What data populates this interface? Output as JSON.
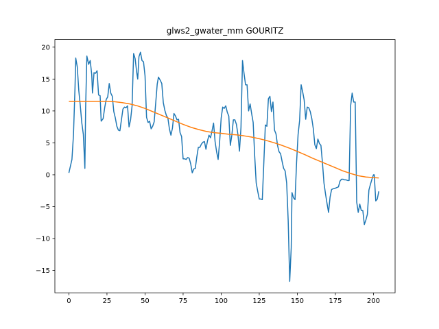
{
  "chart_data": {
    "type": "line",
    "title": "glws2_gwater_mm GOURITZ",
    "xlabel": "",
    "ylabel": "",
    "xlim": [
      -9.2,
      214.2
    ],
    "ylim": [
      -18.5,
      21.2
    ],
    "xticks": [
      0,
      25,
      50,
      75,
      100,
      125,
      150,
      175,
      200
    ],
    "yticks": [
      -15,
      -10,
      -5,
      0,
      5,
      10,
      15,
      20
    ],
    "grid": false,
    "legend": "none",
    "series": [
      {
        "color": "#1f77b4",
        "points": [
          [
            0,
            0.3
          ],
          [
            2,
            2.4
          ],
          [
            3,
            6.2
          ],
          [
            4,
            13.5
          ],
          [
            4.5,
            18.3
          ],
          [
            5.5,
            16.9
          ],
          [
            6.5,
            13.2
          ],
          [
            7.5,
            10.8
          ],
          [
            8.5,
            8.1
          ],
          [
            9.5,
            6.3
          ],
          [
            10.5,
            1.0
          ],
          [
            11,
            10.5
          ],
          [
            11.8,
            18.6
          ],
          [
            13,
            17.3
          ],
          [
            14,
            17.9
          ],
          [
            15,
            15.7
          ],
          [
            15.5,
            12.8
          ],
          [
            16.5,
            16.0
          ],
          [
            17.5,
            15.9
          ],
          [
            18.5,
            16.3
          ],
          [
            19.5,
            12.5
          ],
          [
            20.5,
            12.4
          ],
          [
            21.2,
            8.4
          ],
          [
            22.5,
            8.8
          ],
          [
            23.5,
            10.5
          ],
          [
            24.5,
            11.8
          ],
          [
            25.5,
            12.2
          ],
          [
            26.5,
            14.3
          ],
          [
            27.5,
            12.8
          ],
          [
            28.5,
            12.3
          ],
          [
            29.5,
            9.9
          ],
          [
            30.5,
            8.9
          ],
          [
            31.5,
            7.6
          ],
          [
            32.5,
            7.0
          ],
          [
            33.5,
            6.9
          ],
          [
            34.5,
            8.6
          ],
          [
            35.5,
            10.3
          ],
          [
            36.5,
            10.6
          ],
          [
            37.5,
            10.5
          ],
          [
            38.5,
            10.8
          ],
          [
            39.5,
            7.5
          ],
          [
            40.5,
            8.6
          ],
          [
            41.5,
            10.8
          ],
          [
            42.5,
            19.0
          ],
          [
            43.5,
            18.2
          ],
          [
            44.5,
            16.1
          ],
          [
            45.2,
            15.0
          ],
          [
            46,
            18.5
          ],
          [
            47,
            19.2
          ],
          [
            48,
            17.9
          ],
          [
            49,
            17.7
          ],
          [
            50,
            15.5
          ],
          [
            51,
            9.0
          ],
          [
            52,
            8.2
          ],
          [
            53,
            8.4
          ],
          [
            54,
            7.2
          ],
          [
            55,
            7.6
          ],
          [
            56,
            8.3
          ],
          [
            57,
            11.2
          ],
          [
            58,
            14.2
          ],
          [
            58.8,
            15.3
          ],
          [
            60,
            14.8
          ],
          [
            61,
            14.3
          ],
          [
            62,
            11.3
          ],
          [
            63,
            10.1
          ],
          [
            64,
            9.3
          ],
          [
            65,
            8.9
          ],
          [
            66,
            7.2
          ],
          [
            67,
            6.2
          ],
          [
            68,
            7.3
          ],
          [
            69,
            9.6
          ],
          [
            70,
            9.2
          ],
          [
            71,
            8.6
          ],
          [
            72,
            8.7
          ],
          [
            73,
            6.6
          ],
          [
            74,
            6.0
          ],
          [
            75,
            2.5
          ],
          [
            76,
            2.5
          ],
          [
            77,
            2.4
          ],
          [
            78,
            2.7
          ],
          [
            79,
            2.6
          ],
          [
            80,
            1.7
          ],
          [
            81,
            0.3
          ],
          [
            82,
            0.9
          ],
          [
            83,
            1.0
          ],
          [
            84,
            2.8
          ],
          [
            85,
            4.3
          ],
          [
            86,
            4.3
          ],
          [
            87,
            4.8
          ],
          [
            88,
            5.1
          ],
          [
            89,
            5.2
          ],
          [
            90,
            4.0
          ],
          [
            91,
            5.3
          ],
          [
            92,
            6.2
          ],
          [
            93,
            5.8
          ],
          [
            94,
            6.9
          ],
          [
            95,
            8.1
          ],
          [
            96,
            5.2
          ],
          [
            97,
            3.6
          ],
          [
            98,
            2.4
          ],
          [
            99,
            5.2
          ],
          [
            100,
            8.9
          ],
          [
            101,
            10.6
          ],
          [
            102,
            10.4
          ],
          [
            103,
            10.8
          ],
          [
            104,
            9.8
          ],
          [
            105,
            9.2
          ],
          [
            106,
            4.6
          ],
          [
            107,
            6.2
          ],
          [
            108,
            8.6
          ],
          [
            109,
            8.6
          ],
          [
            110,
            7.9
          ],
          [
            111,
            6.3
          ],
          [
            112,
            3.7
          ],
          [
            113,
            7.4
          ],
          [
            114,
            17.9
          ],
          [
            115,
            15.9
          ],
          [
            116,
            14.1
          ],
          [
            117,
            14.1
          ],
          [
            118,
            10.0
          ],
          [
            119,
            11.1
          ],
          [
            120,
            9.6
          ],
          [
            121,
            8.2
          ],
          [
            122,
            3.0
          ],
          [
            123,
            -1.3
          ],
          [
            124,
            -2.6
          ],
          [
            125,
            -3.8
          ],
          [
            126,
            -3.8
          ],
          [
            127,
            -3.9
          ],
          [
            128,
            1.9
          ],
          [
            129,
            7.8
          ],
          [
            130,
            7.6
          ],
          [
            131,
            11.9
          ],
          [
            132,
            12.3
          ],
          [
            133,
            9.9
          ],
          [
            134,
            11.4
          ],
          [
            135,
            7.0
          ],
          [
            136,
            6.4
          ],
          [
            137,
            4.6
          ],
          [
            138,
            3.6
          ],
          [
            139,
            3.3
          ],
          [
            140,
            2.1
          ],
          [
            141,
            1.0
          ],
          [
            142,
            0.6
          ],
          [
            143,
            -1.3
          ],
          [
            144,
            -7.2
          ],
          [
            145,
            -16.7
          ],
          [
            146,
            -11.4
          ],
          [
            146.5,
            -2.8
          ],
          [
            147.5,
            -3.6
          ],
          [
            148.5,
            -3.9
          ],
          [
            149.5,
            1.9
          ],
          [
            150.5,
            6.3
          ],
          [
            151.5,
            8.5
          ],
          [
            152.5,
            14.1
          ],
          [
            153.5,
            13.0
          ],
          [
            154.5,
            11.7
          ],
          [
            155.5,
            8.7
          ],
          [
            156.5,
            10.6
          ],
          [
            157.5,
            10.5
          ],
          [
            158.5,
            9.9
          ],
          [
            159.5,
            8.8
          ],
          [
            160.5,
            7.2
          ],
          [
            161.5,
            4.7
          ],
          [
            162.5,
            4.1
          ],
          [
            163.5,
            5.6
          ],
          [
            164.5,
            4.9
          ],
          [
            165.5,
            4.6
          ],
          [
            166.5,
            1.9
          ],
          [
            167.5,
            -1.3
          ],
          [
            168.5,
            -3.0
          ],
          [
            169.5,
            -4.5
          ],
          [
            170.5,
            -5.9
          ],
          [
            171.5,
            -3.5
          ],
          [
            172.5,
            -2.3
          ],
          [
            173.5,
            -2.2
          ],
          [
            175,
            -2.1
          ],
          [
            176,
            -2.0
          ],
          [
            177,
            -1.9
          ],
          [
            178,
            -1.0
          ],
          [
            179,
            -0.7
          ],
          [
            180,
            -0.7
          ],
          [
            181,
            -0.8
          ],
          [
            182,
            -0.8
          ],
          [
            183,
            -0.9
          ],
          [
            184,
            -0.9
          ],
          [
            185,
            10.8
          ],
          [
            186,
            12.8
          ],
          [
            187,
            11.4
          ],
          [
            188,
            11.4
          ],
          [
            189,
            -4.3
          ],
          [
            190,
            -5.9
          ],
          [
            191,
            -4.6
          ],
          [
            192,
            -5.6
          ],
          [
            193,
            -5.6
          ],
          [
            194,
            -7.8
          ],
          [
            195,
            -7.1
          ],
          [
            196,
            -6.2
          ],
          [
            197,
            -2.4
          ],
          [
            198,
            -1.5
          ],
          [
            199,
            -0.7
          ],
          [
            200,
            0.0
          ],
          [
            200.5,
            0.0
          ],
          [
            201.5,
            -4.1
          ],
          [
            202.5,
            -3.8
          ],
          [
            203.5,
            -2.6
          ]
        ]
      },
      {
        "color": "#ff7f0e",
        "points": [
          [
            0,
            11.5
          ],
          [
            5,
            11.5
          ],
          [
            10,
            11.5
          ],
          [
            15,
            11.5
          ],
          [
            20,
            11.5
          ],
          [
            25,
            11.5
          ],
          [
            30,
            11.45
          ],
          [
            35,
            11.3
          ],
          [
            40,
            11.1
          ],
          [
            45,
            10.8
          ],
          [
            50,
            10.4
          ],
          [
            55,
            9.9
          ],
          [
            60,
            9.4
          ],
          [
            65,
            8.9
          ],
          [
            70,
            8.4
          ],
          [
            75,
            7.9
          ],
          [
            80,
            7.45
          ],
          [
            85,
            7.1
          ],
          [
            90,
            6.8
          ],
          [
            95,
            6.6
          ],
          [
            100,
            6.5
          ],
          [
            105,
            6.35
          ],
          [
            110,
            6.25
          ],
          [
            115,
            6.1
          ],
          [
            120,
            5.9
          ],
          [
            125,
            5.65
          ],
          [
            130,
            5.35
          ],
          [
            135,
            5.0
          ],
          [
            140,
            4.6
          ],
          [
            145,
            4.15
          ],
          [
            150,
            3.65
          ],
          [
            155,
            3.15
          ],
          [
            160,
            2.6
          ],
          [
            165,
            2.1
          ],
          [
            170,
            1.6
          ],
          [
            175,
            1.1
          ],
          [
            180,
            0.6
          ],
          [
            185,
            0.2
          ],
          [
            190,
            -0.15
          ],
          [
            195,
            -0.35
          ],
          [
            200,
            -0.45
          ],
          [
            203.5,
            -0.5
          ]
        ]
      }
    ]
  }
}
